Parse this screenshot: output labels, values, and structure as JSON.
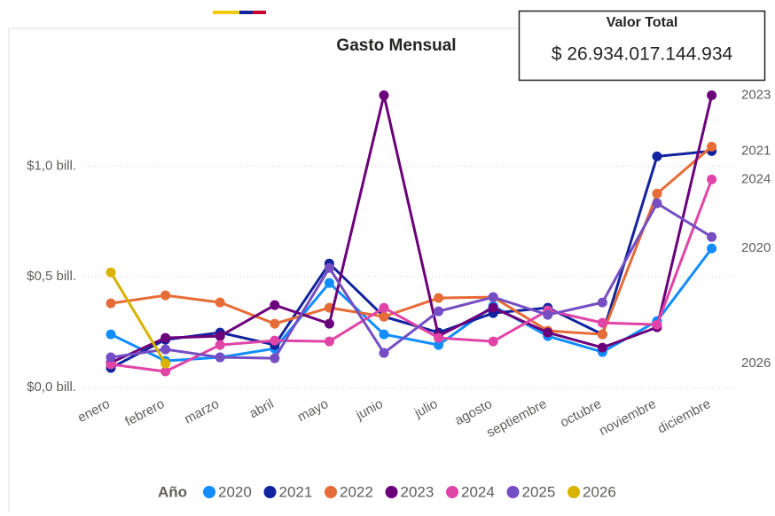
{
  "chart_data": {
    "type": "line",
    "title": "Gasto Mensual",
    "card": {
      "title": "Valor Total",
      "value": "$ 26.934.017.144.934"
    },
    "legend_title": "Año",
    "categories": [
      "enero",
      "febrero",
      "marzo",
      "abril",
      "mayo",
      "junio",
      "julio",
      "agosto",
      "septiembre",
      "octubre",
      "noviembre",
      "diciembre"
    ],
    "ylim": [
      0,
      1.35
    ],
    "yticks": [
      {
        "value": 0,
        "label": "$0,0 bill."
      },
      {
        "value": 0.5,
        "label": "$0,5 bill."
      },
      {
        "value": 1.0,
        "label": "$1,0 bill."
      }
    ],
    "grid": true,
    "series": [
      {
        "name": "2020",
        "color": "#118DFF",
        "values": [
          0.24,
          0.12,
          0.136,
          0.176,
          0.472,
          0.24,
          0.192,
          0.368,
          0.232,
          0.16,
          0.3,
          0.628
        ]
      },
      {
        "name": "2021",
        "color": "#12239E",
        "values": [
          0.088,
          0.216,
          0.248,
          0.192,
          0.56,
          0.32,
          0.248,
          0.336,
          0.36,
          0.24,
          1.044,
          1.068
        ]
      },
      {
        "name": "2022",
        "color": "#E66C37",
        "values": [
          0.38,
          0.416,
          0.384,
          0.288,
          0.36,
          0.32,
          0.404,
          0.408,
          0.256,
          0.24,
          0.876,
          1.088
        ]
      },
      {
        "name": "2023",
        "color": "#6B007B",
        "values": [
          0.112,
          0.224,
          0.232,
          0.372,
          0.288,
          1.32,
          0.232,
          0.36,
          0.248,
          0.18,
          0.272,
          1.32
        ]
      },
      {
        "name": "2024",
        "color": "#E044A7",
        "values": [
          0.104,
          0.072,
          0.192,
          0.212,
          0.208,
          0.36,
          0.224,
          0.208,
          0.348,
          0.292,
          0.284,
          0.94
        ]
      },
      {
        "name": "2025",
        "color": "#744EC2",
        "values": [
          0.136,
          0.172,
          0.136,
          0.132,
          0.54,
          0.156,
          0.344,
          0.408,
          0.328,
          0.384,
          0.832,
          0.68
        ]
      },
      {
        "name": "2026",
        "color": "#D9B300",
        "values": [
          0.52,
          0.108,
          null,
          null,
          null,
          null,
          null,
          null,
          null,
          null,
          null,
          null
        ]
      }
    ]
  }
}
